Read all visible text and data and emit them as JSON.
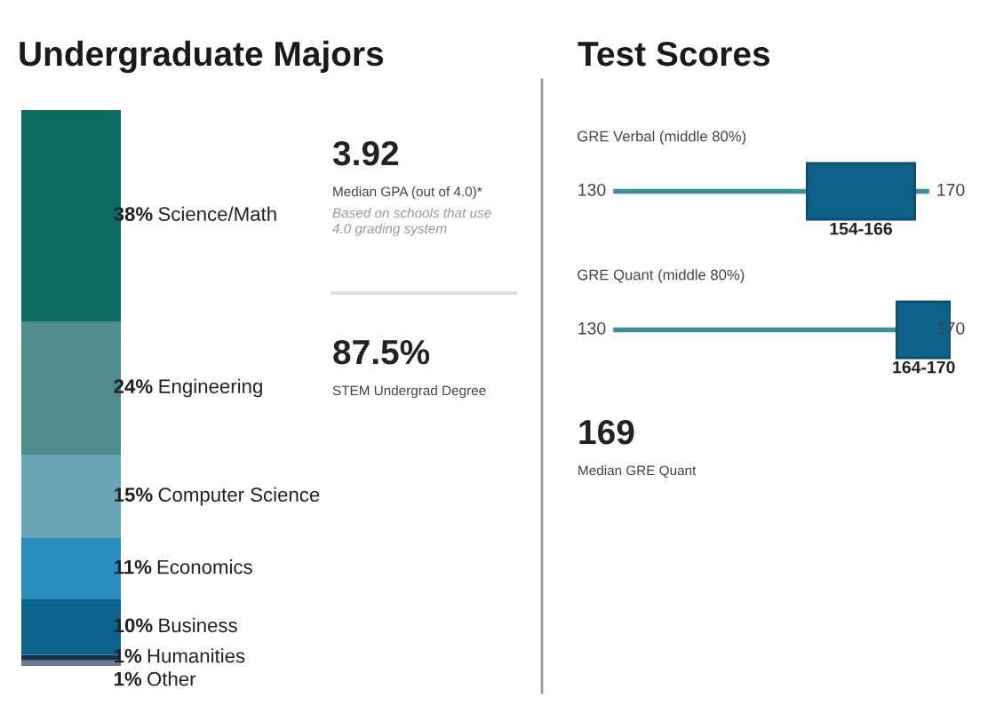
{
  "chart_data": [
    {
      "type": "bar",
      "title": "Undergraduate Majors",
      "stacked": true,
      "categories": [
        null
      ],
      "series": [
        {
          "name": "Other",
          "color": "#6b7b94",
          "values": [
            1
          ],
          "value_labels": [
            "1%"
          ]
        },
        {
          "name": "Humanities",
          "color": "#1a2f4a",
          "values": [
            1
          ],
          "value_labels": [
            "1%"
          ]
        },
        {
          "name": "Business",
          "color": "#0a6189",
          "values": [
            10
          ],
          "value_labels": [
            "10%"
          ]
        },
        {
          "name": "Economics",
          "color": "#2b8cc0",
          "values": [
            11
          ],
          "value_labels": [
            "11%"
          ]
        },
        {
          "name": "Computer Science",
          "color": "#6aa5b5",
          "values": [
            15
          ],
          "value_labels": [
            "15%"
          ]
        },
        {
          "name": "Engineering",
          "color": "#4f8a8d",
          "values": [
            24
          ],
          "value_labels": [
            "24%"
          ]
        },
        {
          "name": "Science/Math",
          "color": "#0b6b63",
          "values": [
            38
          ],
          "value_labels": [
            "38%"
          ]
        }
      ]
    },
    {
      "type": "other",
      "title": "3.92",
      "annotations": [
        "Median GPA (out of 4.0)*",
        "Based on schools that use 4.0 grading system"
      ]
    },
    {
      "type": "other",
      "title": "87.5%",
      "annotations": [
        "STEM Undergrad Degree"
      ]
    },
    {
      "type": "bar",
      "title": "Test Scores",
      "orientation": "horizontal",
      "categories": [
        "GRE Verbal (middle 80%)"
      ],
      "base": [
        154
      ],
      "values": [
        12
      ],
      "color": "#0e6188",
      "xlim": [
        130,
        170
      ],
      "xticks": [
        130,
        170
      ],
      "value_labels": [
        "154-166"
      ]
    },
    {
      "type": "bar",
      "orientation": "horizontal",
      "categories": [
        "GRE Quant (middle 80%)"
      ],
      "base": [
        164
      ],
      "values": [
        6
      ],
      "color": "#0e6188",
      "xlim": [
        130,
        170
      ],
      "xticks": [
        130,
        170
      ],
      "value_labels": [
        "164-170"
      ]
    },
    {
      "type": "other",
      "title": "169",
      "annotations": [
        "Median GRE Quant"
      ]
    }
  ]
}
